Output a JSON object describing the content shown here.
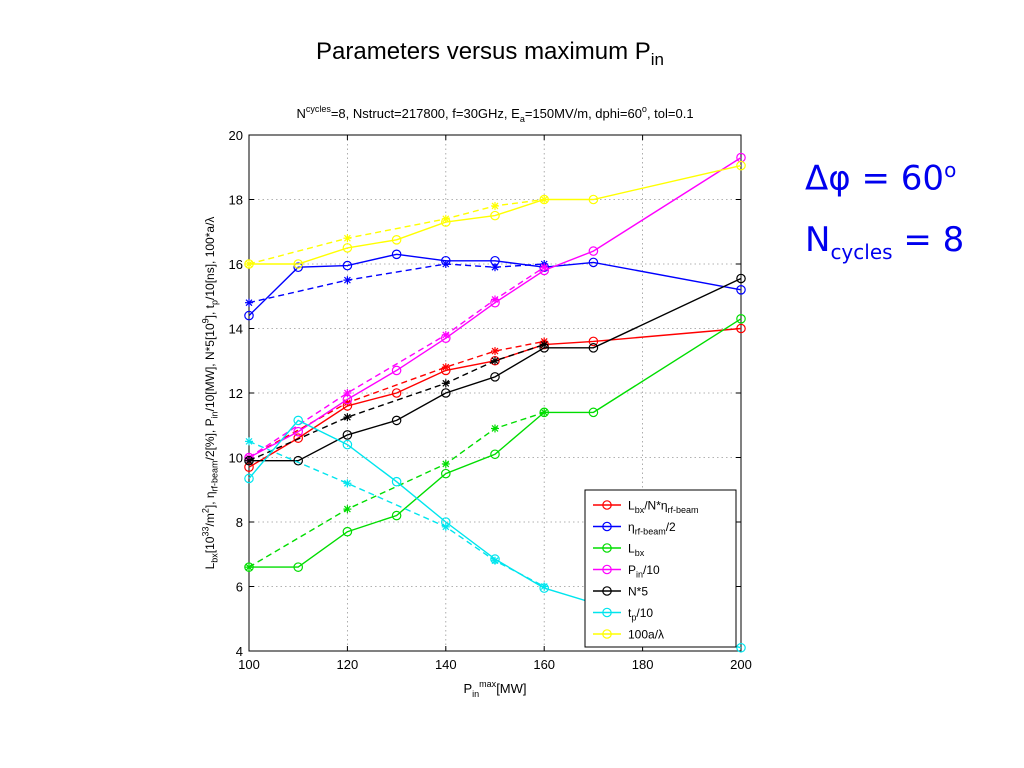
{
  "slide": {
    "title_main": "Parameters versus maximum P",
    "title_sub": "in",
    "note1_main": "Δφ = 60",
    "note1_sup": "o",
    "note2_main": "N",
    "note2_sub": "cycles",
    "note2_tail": " = 8"
  },
  "chart_data": {
    "type": "line",
    "title_parts": [
      {
        "t": "N",
        "s": 0
      },
      {
        "t": "cycles",
        "s": 1
      },
      {
        "t": "=8, Nstruct=217800, f=30GHz, E",
        "s": 0
      },
      {
        "t": "a",
        "s": -1
      },
      {
        "t": "=150MV/m, dphi=60",
        "s": 0
      },
      {
        "t": "o",
        "s": 1
      },
      {
        "t": ", tol=0.1",
        "s": 0
      }
    ],
    "xlabel_parts": [
      {
        "t": "P",
        "s": 0
      },
      {
        "t": "in",
        "s": -1
      },
      {
        "t": "max",
        "s": 1
      },
      {
        "t": "[MW]",
        "s": 0
      }
    ],
    "ylabel_parts": [
      {
        "t": "L",
        "s": 0
      },
      {
        "t": "bx",
        "s": -1
      },
      {
        "t": "[10",
        "s": 0
      },
      {
        "t": "33",
        "s": 1
      },
      {
        "t": "/m",
        "s": 0
      },
      {
        "t": "2",
        "s": 1
      },
      {
        "t": "], η",
        "s": 0
      },
      {
        "t": "rf-beam",
        "s": -1
      },
      {
        "t": "/2[%], P",
        "s": 0
      },
      {
        "t": "in",
        "s": -1
      },
      {
        "t": "/10[MW], N*5[10",
        "s": 0
      },
      {
        "t": "9",
        "s": 1
      },
      {
        "t": "], t",
        "s": 0
      },
      {
        "t": "p",
        "s": -1
      },
      {
        "t": "/10[ns], 100*a/λ",
        "s": 0
      }
    ],
    "xlim": [
      100,
      200
    ],
    "ylim": [
      4,
      20
    ],
    "xticks": [
      100,
      120,
      140,
      160,
      180,
      200
    ],
    "yticks": [
      4,
      6,
      8,
      10,
      12,
      14,
      16,
      18,
      20
    ],
    "grid": true,
    "legend_position": "lower-right",
    "series": [
      {
        "name_parts": [
          {
            "t": "L",
            "s": 0
          },
          {
            "t": "bx",
            "s": -1
          },
          {
            "t": "/N*η",
            "s": 0
          },
          {
            "t": "rf-beam",
            "s": -1
          }
        ],
        "color": "#ff0000",
        "solid": {
          "x": [
            100,
            110,
            120,
            130,
            140,
            150,
            160,
            170,
            200
          ],
          "y": [
            9.7,
            10.6,
            11.6,
            12.0,
            12.7,
            13.0,
            13.5,
            13.6,
            14.0
          ]
        },
        "dashed": {
          "x": [
            100,
            120,
            140,
            150,
            160
          ],
          "y": [
            10.0,
            11.7,
            12.8,
            13.3,
            13.6
          ]
        }
      },
      {
        "name_parts": [
          {
            "t": "η",
            "s": 0
          },
          {
            "t": "rf-beam",
            "s": -1
          },
          {
            "t": "/2",
            "s": 0
          }
        ],
        "color": "#0000ff",
        "solid": {
          "x": [
            100,
            110,
            120,
            130,
            140,
            150,
            160,
            170,
            200
          ],
          "y": [
            14.4,
            15.9,
            15.95,
            16.3,
            16.1,
            16.1,
            15.9,
            16.05,
            15.2
          ]
        },
        "dashed": {
          "x": [
            100,
            120,
            140,
            150,
            160
          ],
          "y": [
            14.8,
            15.5,
            16.0,
            15.9,
            16.0
          ]
        }
      },
      {
        "name_parts": [
          {
            "t": "L",
            "s": 0
          },
          {
            "t": "bx",
            "s": -1
          }
        ],
        "color": "#00dd00",
        "solid": {
          "x": [
            100,
            110,
            120,
            130,
            140,
            150,
            160,
            170,
            200
          ],
          "y": [
            6.6,
            6.6,
            7.7,
            8.2,
            9.5,
            10.1,
            11.4,
            11.4,
            14.3
          ]
        },
        "dashed": {
          "x": [
            100,
            120,
            140,
            150,
            160
          ],
          "y": [
            6.6,
            8.4,
            9.8,
            10.9,
            11.4
          ]
        }
      },
      {
        "name_parts": [
          {
            "t": "P",
            "s": 0
          },
          {
            "t": "in",
            "s": -1
          },
          {
            "t": "/10",
            "s": 0
          }
        ],
        "color": "#ff00ff",
        "solid": {
          "x": [
            100,
            110,
            120,
            130,
            140,
            150,
            160,
            170,
            200
          ],
          "y": [
            10.0,
            10.8,
            11.8,
            12.7,
            13.7,
            14.8,
            15.8,
            16.4,
            19.3
          ]
        },
        "dashed": {
          "x": [
            100,
            120,
            140,
            150,
            160
          ],
          "y": [
            10.0,
            12.0,
            13.8,
            14.9,
            15.9
          ]
        }
      },
      {
        "name_parts": [
          {
            "t": "N*5",
            "s": 0
          }
        ],
        "color": "#000000",
        "solid": {
          "x": [
            100,
            110,
            120,
            130,
            140,
            150,
            160,
            170,
            200
          ],
          "y": [
            9.9,
            9.9,
            10.7,
            11.15,
            12.0,
            12.5,
            13.4,
            13.4,
            15.55
          ]
        },
        "dashed": {
          "x": [
            100,
            120,
            140,
            150,
            160
          ],
          "y": [
            9.9,
            11.25,
            12.3,
            13.0,
            13.5
          ]
        }
      },
      {
        "name_parts": [
          {
            "t": "t",
            "s": 0
          },
          {
            "t": "p",
            "s": -1
          },
          {
            "t": "/10",
            "s": 0
          }
        ],
        "color": "#00e5ee",
        "solid": {
          "x": [
            100,
            110,
            120,
            130,
            140,
            150,
            160,
            200
          ],
          "y": [
            9.35,
            11.15,
            10.4,
            9.25,
            8.0,
            6.85,
            5.95,
            4.1
          ]
        },
        "dashed": {
          "x": [
            100,
            120,
            140,
            150,
            160
          ],
          "y": [
            10.5,
            9.2,
            7.85,
            6.8,
            6.0
          ]
        }
      },
      {
        "name_parts": [
          {
            "t": "100a/λ",
            "s": 0
          }
        ],
        "color": "#ffff00",
        "solid": {
          "x": [
            100,
            110,
            120,
            130,
            140,
            150,
            160,
            170,
            200
          ],
          "y": [
            16.0,
            16.0,
            16.5,
            16.75,
            17.3,
            17.5,
            18.0,
            18.0,
            19.05
          ]
        },
        "dashed": {
          "x": [
            100,
            120,
            140,
            150,
            160
          ],
          "y": [
            16.0,
            16.8,
            17.4,
            17.8,
            18.0
          ]
        }
      }
    ]
  }
}
